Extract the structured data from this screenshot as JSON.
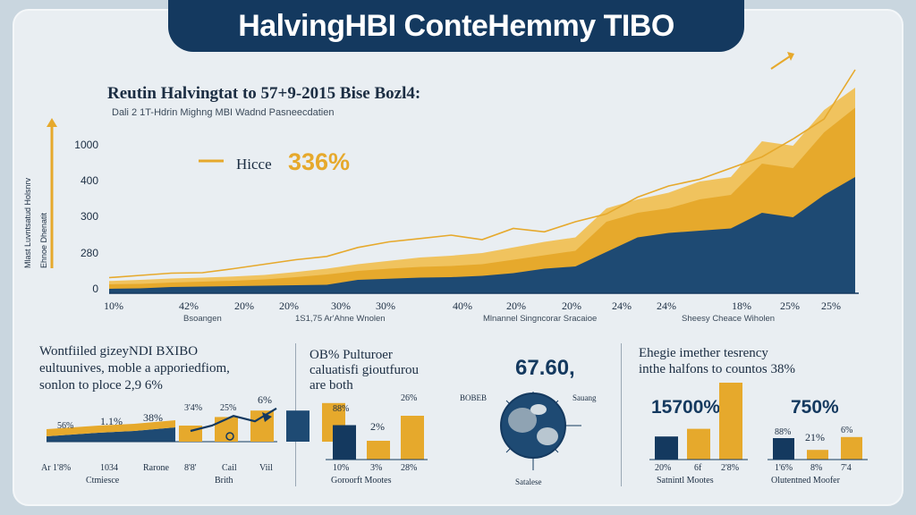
{
  "title": "HalvingHBI ConteHemmy TIBO",
  "main_chart": {
    "subtitle": "Reutin Halvingtat to 57+9-2015 Bise Bozl4:",
    "subtitle2": "Dali 2 1T-Hdrin Mighng MBI Wadnd Pasneecdatien",
    "callout_label": "Hicce",
    "callout_value": "336%",
    "y_axis_title": "Mlast Luvntsatud Holsnrv",
    "y_axis_title2": "Ehnoe Dhenatit",
    "y_ticks": [
      "1000",
      "400",
      "300",
      "280",
      "0"
    ],
    "x_ticks": [
      "10%",
      "42%",
      "20%",
      "20%",
      "30%",
      "30%",
      "40%",
      "20%",
      "20%",
      "24%",
      "24%",
      "18%",
      "25%",
      "25%"
    ],
    "x_sublabels": [
      "Bsoangen",
      "1S1,75 Ar'Ahne Wnolen",
      "Mlnannel Singncorar Sracaioe",
      "Sheesy Cheace Wiholen"
    ]
  },
  "chart_data": [
    {
      "type": "area",
      "title": "Reutin Halvingtat to 57+9-2015 Bise Bozl4:",
      "x": [
        0,
        1,
        2,
        3,
        4,
        5,
        6,
        7,
        8,
        9,
        10,
        11,
        12,
        13,
        14,
        15,
        16,
        17,
        18,
        19,
        20,
        21,
        22,
        23,
        24
      ],
      "ylim": [
        0,
        1000
      ],
      "series": [
        {
          "color": "#1e4a73",
          "values": [
            20,
            22,
            28,
            30,
            32,
            34,
            36,
            38,
            60,
            65,
            70,
            72,
            78,
            90,
            110,
            120,
            185,
            250,
            270,
            280,
            290,
            360,
            340,
            440,
            520
          ]
        },
        {
          "color": "#e6a92c",
          "values": [
            40,
            42,
            48,
            52,
            56,
            62,
            72,
            84,
            100,
            110,
            118,
            122,
            130,
            150,
            170,
            190,
            320,
            360,
            380,
            420,
            440,
            580,
            560,
            720,
            830
          ]
        },
        {
          "color": "#f0c35e",
          "values": [
            55,
            60,
            66,
            70,
            75,
            82,
            95,
            110,
            130,
            145,
            160,
            168,
            180,
            205,
            230,
            250,
            380,
            420,
            450,
            500,
            520,
            680,
            660,
            820,
            920
          ]
        }
      ],
      "trend_line": {
        "color": "#e6a92c",
        "values": [
          70,
          80,
          90,
          92,
          110,
          130,
          150,
          165,
          205,
          230,
          245,
          260,
          240,
          290,
          275,
          320,
          355,
          430,
          480,
          510,
          560,
          610,
          690,
          780,
          1000
        ]
      }
    },
    {
      "type": "area",
      "title": "Wontfiiled gizeyNDI BXIBO",
      "ylim": [
        0,
        100
      ],
      "series": [
        {
          "color": "#1e4a73",
          "values": [
            20,
            24,
            28,
            34,
            38,
            44
          ]
        },
        {
          "color": "#e6a92c",
          "values": [
            30,
            32,
            36,
            42,
            46,
            52
          ]
        }
      ]
    },
    {
      "type": "bar",
      "ylim": [
        0,
        100
      ],
      "categories": [
        "1.1%",
        "38%",
        "8'4%",
        "25%",
        "6%"
      ],
      "values": [
        30,
        46,
        58,
        58,
        72
      ],
      "colors": [
        "#e6a92c",
        "#e6a92c",
        "#e6a92c",
        "#1e4a73",
        "#e6a92c"
      ],
      "trend": [
        20,
        30,
        48,
        38,
        62
      ]
    },
    {
      "type": "bar",
      "ylim": [
        0,
        100
      ],
      "categories": [
        "88%",
        "2%",
        "26%"
      ],
      "values": [
        55,
        30,
        70
      ],
      "colors": [
        "#14395f",
        "#e6a92c",
        "#e6a92c"
      ]
    },
    {
      "type": "bar",
      "ylim": [
        0,
        100
      ],
      "categories": [
        "20%",
        "6f",
        "2'8%"
      ],
      "values": [
        30,
        40,
        100
      ],
      "colors": [
        "#14395f",
        "#e6a92c",
        "#e6a92c"
      ]
    },
    {
      "type": "bar",
      "ylim": [
        0,
        100
      ],
      "categories": [
        "88%",
        "21%",
        "6%"
      ],
      "values": [
        40,
        18,
        42
      ],
      "colors": [
        "#14395f",
        "#e6a92c",
        "#e6a92c"
      ]
    }
  ],
  "section1": {
    "text1": "Wontfiiled gizeyNDI BXIBO",
    "text2": "eultuunives, moble a apporiedfiom,",
    "text3": "sonlon to ploce 2,9 6%",
    "labels": [
      "56%",
      "1.1%",
      "38%",
      "3'4%",
      "25%",
      "6%"
    ],
    "xlabels": [
      "Ar 1'8%",
      "1034",
      "Rarone",
      "8'8'",
      "Cail",
      "Viil"
    ],
    "sublabels": [
      "Ctmiesce",
      "Brith"
    ]
  },
  "section2": {
    "text1": "OB% Pulturoer",
    "text2": "caluatisfi gioutfurou",
    "text3": "are both",
    "globe_value": "67.60,",
    "globe_left": "BOBEB",
    "globe_right": "Sauang",
    "globe_bottom": "Satalese",
    "bar_labels_top": [
      "88%",
      "2%",
      "26%"
    ],
    "bar_labels_bottom": [
      "10%",
      "3%",
      "28%"
    ],
    "sublabel": "Goroorft Mootes"
  },
  "section3": {
    "text1": "Ehegie imether tesrency",
    "text2": "inthe halfons to countos 38%",
    "value1": "15700%",
    "value2": "750%",
    "left_bottom": [
      "20%",
      "6f",
      "2'8%"
    ],
    "right_top": [
      "88%",
      "21%",
      "6%"
    ],
    "right_bottom": [
      "1'6%",
      "8%",
      "7'4"
    ],
    "sublabel1": "Satnintl Mootes",
    "sublabel2": "Olutentned Moofer"
  }
}
